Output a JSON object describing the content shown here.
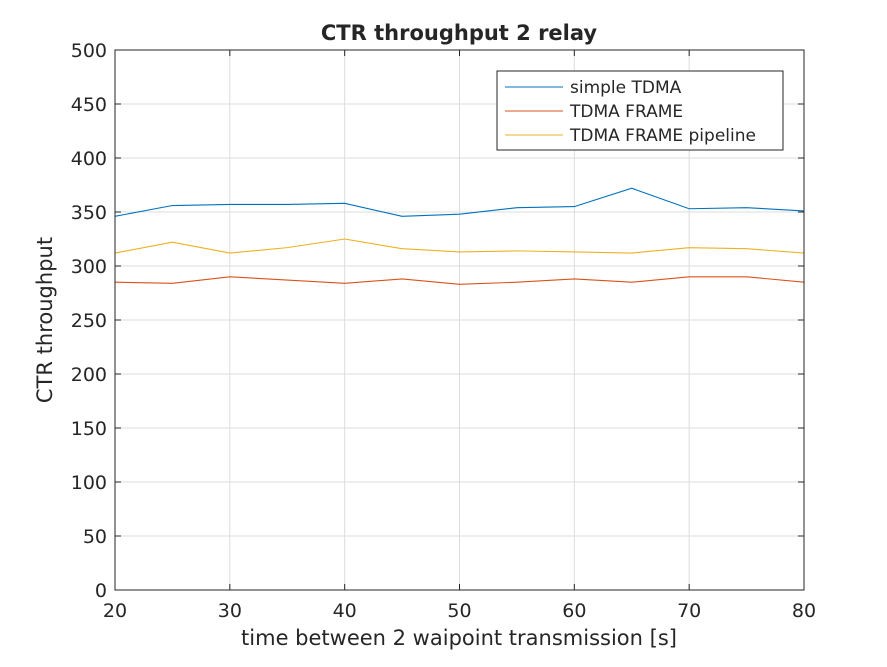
{
  "chart_data": {
    "type": "line",
    "title": "CTR throughput 2 relay",
    "xlabel": "time between 2 waipoint transmission [s]",
    "ylabel": "CTR throughput",
    "xlim": [
      20,
      80
    ],
    "ylim": [
      0,
      500
    ],
    "xticks": [
      20,
      30,
      40,
      50,
      60,
      70,
      80
    ],
    "yticks": [
      0,
      50,
      100,
      150,
      200,
      250,
      300,
      350,
      400,
      450,
      500
    ],
    "grid": true,
    "legend_position": "top-right",
    "x": [
      20,
      25,
      30,
      35,
      40,
      45,
      50,
      55,
      60,
      65,
      70,
      75,
      80
    ],
    "series": [
      {
        "name": "simple TDMA",
        "color": "#0072BD",
        "values": [
          346,
          356,
          357,
          357,
          358,
          346,
          348,
          354,
          355,
          372,
          353,
          354,
          351
        ]
      },
      {
        "name": "TDMA FRAME",
        "color": "#D95319",
        "values": [
          285,
          284,
          290,
          287,
          284,
          288,
          283,
          285,
          288,
          285,
          290,
          290,
          285
        ]
      },
      {
        "name": "TDMA FRAME pipeline",
        "color": "#EDB120",
        "values": [
          312,
          322,
          312,
          317,
          325,
          316,
          313,
          314,
          313,
          312,
          317,
          316,
          312
        ]
      }
    ]
  }
}
